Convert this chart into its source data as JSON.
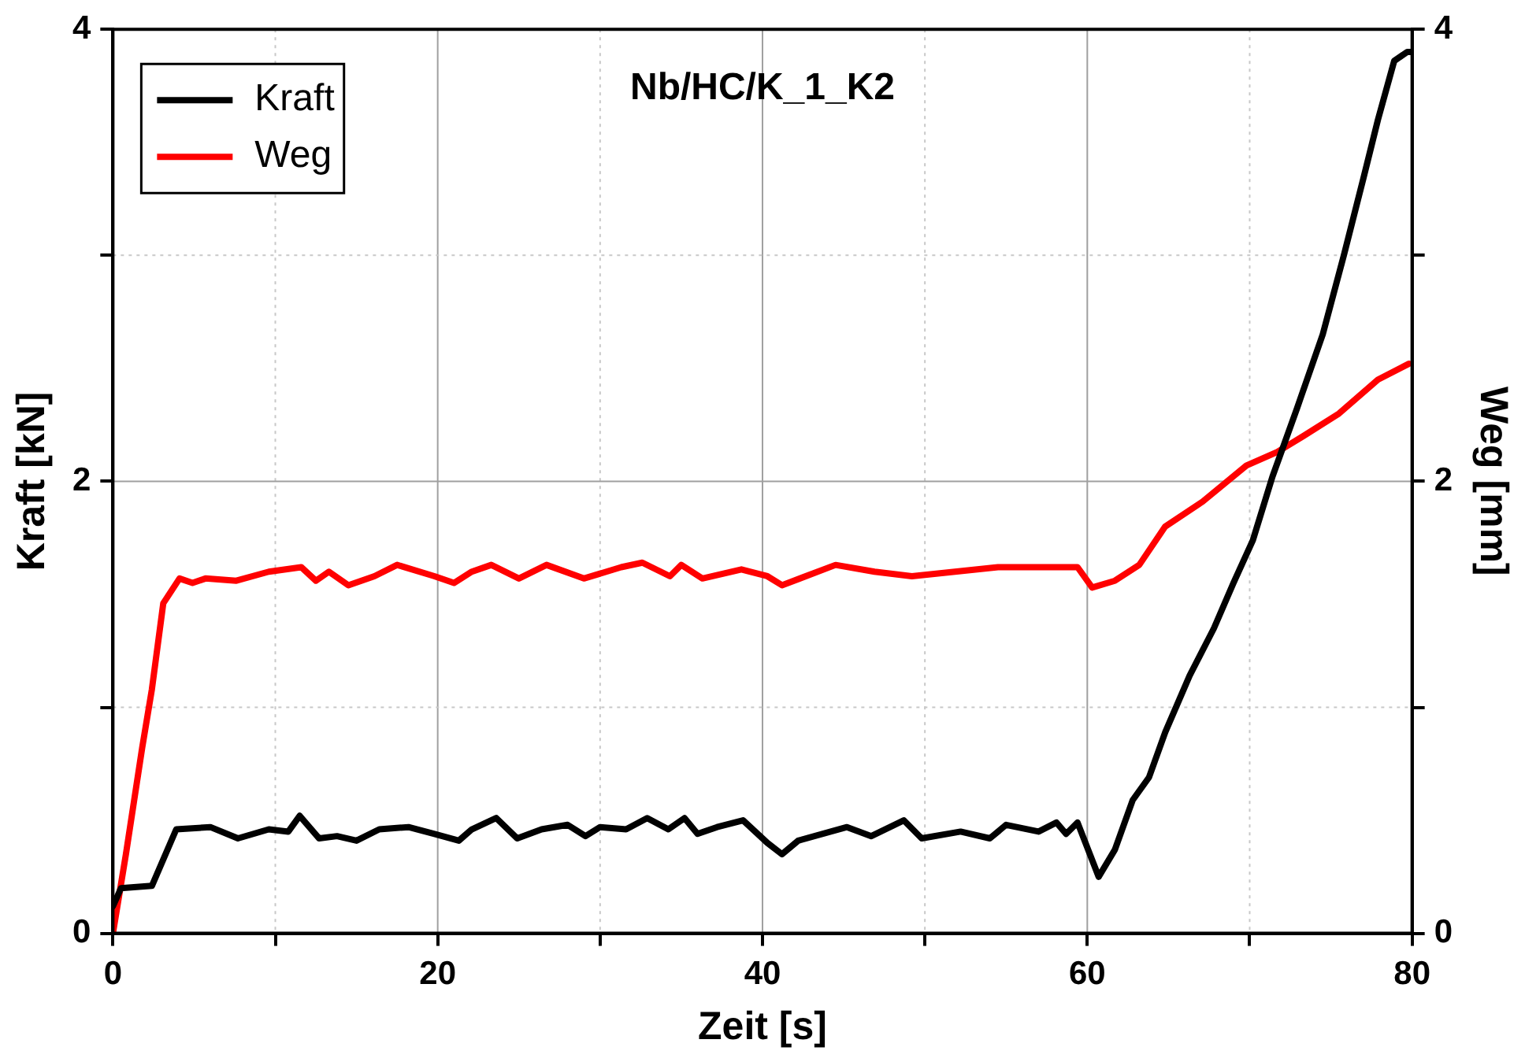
{
  "chart_data": {
    "type": "line",
    "title": "Nb/HC/K_1_K2",
    "xlabel": "Zeit [s]",
    "ylabel": "Kraft [kN]",
    "y2label": "Weg [mm]",
    "xlim": [
      0,
      80
    ],
    "xticks": [
      0,
      {
        "value": 10,
        "label": null
      },
      20,
      {
        "value": 30,
        "label": null
      },
      40,
      {
        "value": 50,
        "label": null
      },
      60,
      {
        "value": 70,
        "label": null
      },
      80
    ],
    "ylim": [
      0,
      4
    ],
    "yticks": [
      0,
      {
        "value": 1,
        "label": null
      },
      2,
      {
        "value": 3,
        "label": null
      },
      4
    ],
    "y2lim": [
      0,
      4
    ],
    "y2ticks": [
      0,
      {
        "value": 1,
        "label": null
      },
      2,
      {
        "value": 3,
        "label": null
      },
      4
    ],
    "grid": true,
    "legend": "top left",
    "marker": "none",
    "line_style": "solid",
    "series": [
      {
        "name": "Kraft",
        "color": "#000000",
        "x": [
          0,
          0.5,
          2.4,
          3.9,
          6,
          7.7,
          9.6,
          10.8,
          11.5,
          12.7,
          13.8,
          15,
          16.4,
          18.2,
          19.8,
          21.3,
          22.1,
          23.6,
          24.9,
          26.4,
          28,
          29.1,
          30,
          31.6,
          32.9,
          34.2,
          35.2,
          36,
          37.2,
          38.8,
          40.3,
          41.2,
          42.2,
          45.2,
          46.7,
          48.7,
          49.8,
          52.2,
          54,
          55,
          57,
          58.1,
          58.7,
          59.4,
          60.7,
          61.7,
          62.8,
          63.8,
          64.8,
          66.3,
          67.8,
          69,
          70.2,
          71.4,
          72.9,
          74.5,
          75.8,
          77,
          77.9,
          78.9,
          79.7,
          80
        ],
        "values": [
          0.12,
          0.2,
          0.21,
          0.46,
          0.47,
          0.42,
          0.46,
          0.45,
          0.52,
          0.42,
          0.43,
          0.41,
          0.46,
          0.47,
          0.44,
          0.41,
          0.46,
          0.51,
          0.42,
          0.46,
          0.48,
          0.43,
          0.47,
          0.46,
          0.51,
          0.46,
          0.51,
          0.44,
          0.47,
          0.5,
          0.4,
          0.35,
          0.41,
          0.47,
          0.43,
          0.5,
          0.42,
          0.45,
          0.42,
          0.48,
          0.45,
          0.49,
          0.44,
          0.49,
          0.25,
          0.37,
          0.59,
          0.69,
          0.89,
          1.14,
          1.35,
          1.55,
          1.74,
          2.02,
          2.32,
          2.65,
          3.0,
          3.34,
          3.6,
          3.86,
          3.9,
          3.9
        ]
      },
      {
        "name": "Weg",
        "color": "#ff0000",
        "axis": "y2",
        "x": [
          0,
          0.8,
          1.8,
          2.4,
          3.1,
          4.1,
          4.9,
          5.7,
          7.6,
          9.6,
          11.6,
          12.5,
          13.3,
          14.5,
          16.1,
          17.5,
          19.8,
          21,
          22.1,
          23.3,
          25,
          26.7,
          29,
          31.3,
          32.6,
          34.3,
          35,
          36.3,
          38.7,
          40.3,
          41.2,
          44.5,
          46.9,
          49.2,
          54.5,
          59.4,
          60.3,
          61.7,
          63.2,
          64.8,
          67.1,
          69.8,
          71.7,
          73.3,
          75.5,
          77.9,
          79.8
        ],
        "values": [
          0,
          0.35,
          0.82,
          1.08,
          1.46,
          1.57,
          1.55,
          1.57,
          1.56,
          1.6,
          1.62,
          1.56,
          1.6,
          1.54,
          1.58,
          1.63,
          1.58,
          1.55,
          1.6,
          1.63,
          1.57,
          1.63,
          1.57,
          1.62,
          1.64,
          1.58,
          1.63,
          1.57,
          1.61,
          1.58,
          1.54,
          1.63,
          1.6,
          1.58,
          1.62,
          1.62,
          1.53,
          1.56,
          1.63,
          1.8,
          1.91,
          2.07,
          2.13,
          2.2,
          2.3,
          2.45,
          2.52
        ]
      }
    ]
  }
}
